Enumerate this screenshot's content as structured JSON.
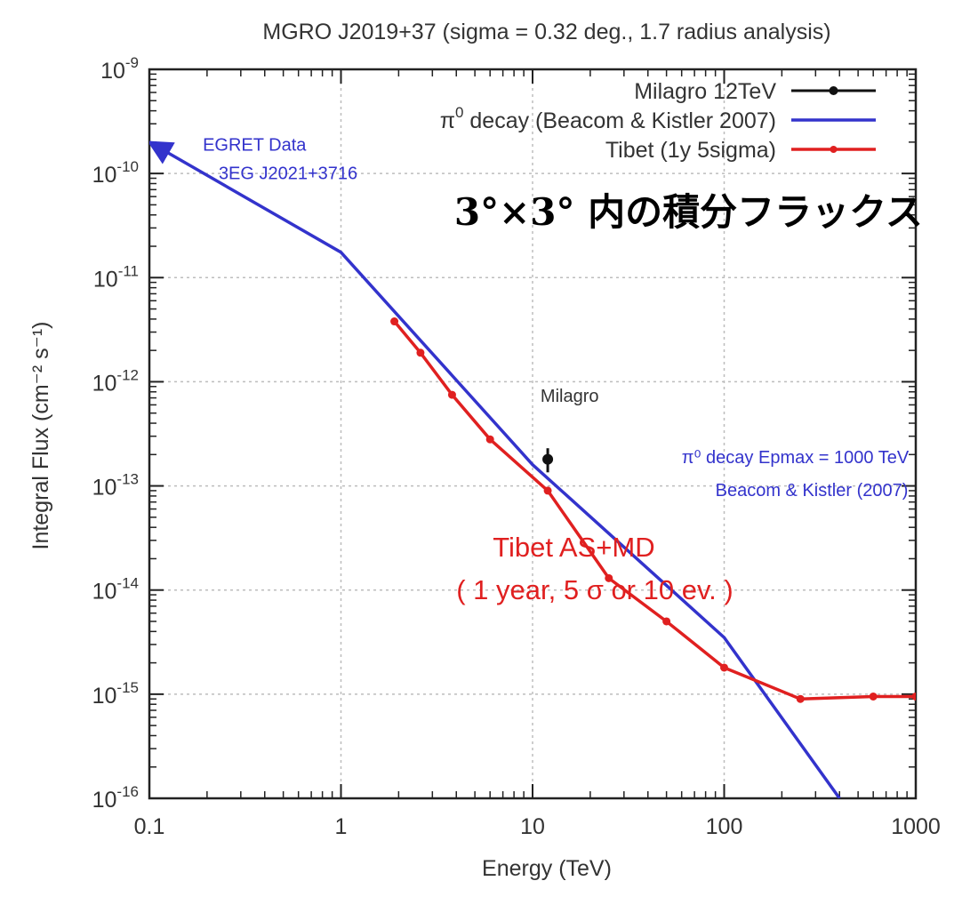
{
  "chart_data": {
    "type": "line",
    "title": "MGRO J2019+37 (sigma = 0.32 deg., 1.7 radius analysis)",
    "xlabel": "Energy (TeV)",
    "ylabel": "Integral Flux (cm⁻² s⁻¹)",
    "x_scale": "log",
    "y_scale": "log",
    "xlim": [
      0.1,
      1000
    ],
    "ylim": [
      1e-16,
      1e-09
    ],
    "x_ticks": [
      {
        "value": 0.1,
        "label": "0.1"
      },
      {
        "value": 1,
        "label": "1"
      },
      {
        "value": 10,
        "label": "10"
      },
      {
        "value": 100,
        "label": "100"
      },
      {
        "value": 1000,
        "label": "1000"
      }
    ],
    "y_ticks": [
      {
        "value": 1e-09,
        "base": "10",
        "exp": "-9"
      },
      {
        "value": 1e-10,
        "base": "10",
        "exp": "-10"
      },
      {
        "value": 1e-11,
        "base": "10",
        "exp": "-11"
      },
      {
        "value": 1e-12,
        "base": "10",
        "exp": "-12"
      },
      {
        "value": 1e-13,
        "base": "10",
        "exp": "-13"
      },
      {
        "value": 1e-14,
        "base": "10",
        "exp": "-14"
      },
      {
        "value": 1e-15,
        "base": "10",
        "exp": "-15"
      },
      {
        "value": 1e-16,
        "base": "10",
        "exp": "-16"
      }
    ],
    "grid": true,
    "legend_position": "top-right",
    "legend": [
      {
        "label": "Milagro 12TeV",
        "color": "#111111",
        "style": "point-errorbar"
      },
      {
        "label_symbol": "π",
        "label_sup": "0",
        "label": " decay (Beacom & Kistler 2007)",
        "color": "#3333cc",
        "style": "line"
      },
      {
        "label": "Tibet (1y 5sigma)",
        "color": "#e02020",
        "style": "line-point"
      }
    ],
    "series": [
      {
        "name": "Milagro 12TeV",
        "kind": "point",
        "color": "#111111",
        "x": [
          12
        ],
        "y": [
          1.8e-13
        ],
        "y_err_low": [
          1.35e-13
        ],
        "y_err_high": [
          2.3e-13
        ]
      },
      {
        "name": "π⁰ decay (Beacom & Kistler 2007)",
        "kind": "line",
        "color": "#3333cc",
        "x": [
          0.1,
          1,
          10,
          100,
          400
        ],
        "y": [
          2e-10,
          1.75e-11,
          1.6e-13,
          3.5e-15,
          1e-16
        ],
        "arrow_start": true
      },
      {
        "name": "Tibet (1y 5sigma)",
        "kind": "line-point",
        "color": "#e02020",
        "x": [
          1.9,
          2.6,
          3.8,
          6.0,
          12,
          25,
          50,
          100,
          250,
          600,
          1000
        ],
        "y": [
          3.8e-12,
          1.9e-12,
          7.5e-13,
          2.8e-13,
          9e-14,
          1.3e-14,
          5e-15,
          1.8e-15,
          9e-16,
          9.5e-16,
          9.5e-16
        ]
      }
    ],
    "annotations": [
      {
        "text": "EGRET Data",
        "color": "#3333cc",
        "x": 0.19,
        "y": 1.65e-10
      },
      {
        "text": "3EG J2021+3716",
        "color": "#3333cc",
        "x": 0.23,
        "y": 8.8e-11
      },
      {
        "text": "3°×3° 内の積分フラックス",
        "color": "#000000",
        "x": 3.9,
        "y": 3.2e-11,
        "style": "large"
      },
      {
        "text": "Milagro",
        "color": "#333333",
        "x": 11,
        "y": 6.4e-13
      },
      {
        "text": "π⁰ decay Epmax = 1000 TeV",
        "color": "#3333cc",
        "x": 60,
        "y": 1.65e-13
      },
      {
        "text": "Beacom & Kistler (2007)",
        "color": "#3333cc",
        "x": 90,
        "y": 8e-14
      },
      {
        "text": "Tibet AS+MD",
        "color": "#e02020",
        "x": 6.2,
        "y": 2.1e-14,
        "style": "red-large"
      },
      {
        "text": "( 1 year, 5 σ or 10 ev. )",
        "color": "#e02020",
        "x": 4.0,
        "y": 8.2e-15,
        "style": "red-large"
      }
    ]
  }
}
